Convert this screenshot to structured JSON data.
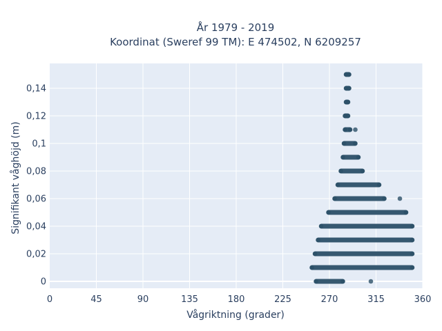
{
  "chart_data": {
    "type": "scatter",
    "title": [
      "År 1979 - 2019",
      "Koordinat (Sweref 99 TM): E 474502, N 6209257"
    ],
    "xlabel": "Vågriktning (grader)",
    "ylabel": "Signifikant våghöjd (m)",
    "xlim": [
      0,
      360
    ],
    "ylim": [
      -0.006,
      0.158
    ],
    "x_ticks": [
      0,
      45,
      90,
      135,
      180,
      225,
      270,
      315,
      360
    ],
    "x_tick_labels": [
      "0",
      "45",
      "90",
      "135",
      "180",
      "225",
      "270",
      "315",
      "360"
    ],
    "y_ticks": [
      0,
      0.02,
      0.04,
      0.06,
      0.08,
      0.1,
      0.12,
      0.14
    ],
    "y_tick_labels": [
      "0",
      "0,02",
      "0,04",
      "0,06",
      "0,08",
      "0,1",
      "0,12",
      "0,14"
    ],
    "grid": true,
    "marker_color": "#2c5068",
    "plot_background": "#e5ecf6",
    "series": [
      {
        "bands": [
          {
            "y": 0.0,
            "x_min": 257,
            "x_max": 283,
            "outliers": [
              310
            ]
          },
          {
            "y": 0.01,
            "x_min": 253,
            "x_max": 350
          },
          {
            "y": 0.02,
            "x_min": 256,
            "x_max": 350
          },
          {
            "y": 0.03,
            "x_min": 259,
            "x_max": 350
          },
          {
            "y": 0.04,
            "x_min": 262,
            "x_max": 350
          },
          {
            "y": 0.05,
            "x_min": 269,
            "x_max": 344
          },
          {
            "y": 0.06,
            "x_min": 275,
            "x_max": 323,
            "outliers": [
              338
            ]
          },
          {
            "y": 0.07,
            "x_min": 278,
            "x_max": 318
          },
          {
            "y": 0.08,
            "x_min": 281,
            "x_max": 302
          },
          {
            "y": 0.09,
            "x_min": 283,
            "x_max": 298
          },
          {
            "y": 0.1,
            "x_min": 284,
            "x_max": 295
          },
          {
            "y": 0.11,
            "x_min": 285,
            "x_max": 290,
            "outliers": [
              295
            ]
          },
          {
            "y": 0.12,
            "x_min": 285,
            "x_max": 288
          },
          {
            "y": 0.13,
            "x_min": 286,
            "x_max": 288
          },
          {
            "y": 0.14,
            "x_min": 286,
            "x_max": 289
          },
          {
            "y": 0.15,
            "x_min": 286,
            "x_max": 289
          }
        ]
      }
    ]
  }
}
